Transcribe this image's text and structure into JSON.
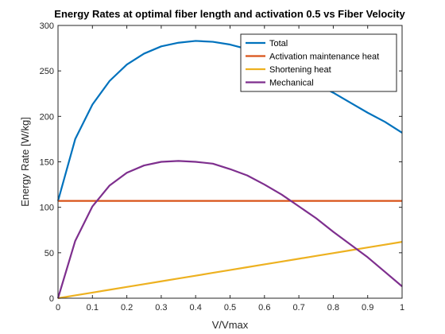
{
  "chart_data": {
    "type": "line",
    "title": "Energy Rates at optimal fiber length and activation 0.5 vs Fiber Velocity",
    "xlabel": "V/Vmax",
    "ylabel": "Energy Rate [W/kg]",
    "xlim": [
      0,
      1
    ],
    "ylim": [
      0,
      300
    ],
    "xticks": [
      0,
      0.1,
      0.2,
      0.3,
      0.4,
      0.5,
      0.6,
      0.7,
      0.8,
      0.9,
      1
    ],
    "xtick_labels": [
      "0",
      "0.1",
      "0.2",
      "0.3",
      "0.4",
      "0.5",
      "0.6",
      "0.7",
      "0.8",
      "0.9",
      "1"
    ],
    "yticks": [
      0,
      50,
      100,
      150,
      200,
      250,
      300
    ],
    "ytick_labels": [
      "0",
      "50",
      "100",
      "150",
      "200",
      "250",
      "300"
    ],
    "grid": false,
    "legend_position": "top-right",
    "x": [
      0,
      0.05,
      0.1,
      0.15,
      0.2,
      0.25,
      0.3,
      0.35,
      0.4,
      0.45,
      0.5,
      0.55,
      0.6,
      0.65,
      0.7,
      0.75,
      0.8,
      0.85,
      0.9,
      0.95,
      1
    ],
    "series": [
      {
        "name": "Total",
        "color": "#0072BD",
        "values": [
          107,
          175,
          213,
          239,
          257,
          269,
          277,
          281,
          283,
          282,
          279,
          274,
          266,
          257,
          247,
          236,
          226,
          215,
          204,
          194,
          182
        ]
      },
      {
        "name": "Activation maintenance heat",
        "color": "#D95319",
        "values": [
          107,
          107,
          107,
          107,
          107,
          107,
          107,
          107,
          107,
          107,
          107,
          107,
          107,
          107,
          107,
          107,
          107,
          107,
          107,
          107,
          107
        ]
      },
      {
        "name": "Shortening heat",
        "color": "#EDB120",
        "values": [
          0,
          3.1,
          6.2,
          9.3,
          12.4,
          15.5,
          18.6,
          21.7,
          24.8,
          27.9,
          31,
          34.1,
          37.2,
          40.3,
          43.4,
          46.5,
          49.6,
          52.7,
          55.8,
          58.9,
          62
        ]
      },
      {
        "name": "Mechanical",
        "color": "#7E2F8E",
        "values": [
          0,
          63,
          101,
          124,
          138,
          146,
          150,
          151,
          150,
          148,
          142,
          135,
          125,
          114,
          101,
          88,
          73,
          59,
          45,
          29,
          13
        ]
      }
    ]
  }
}
